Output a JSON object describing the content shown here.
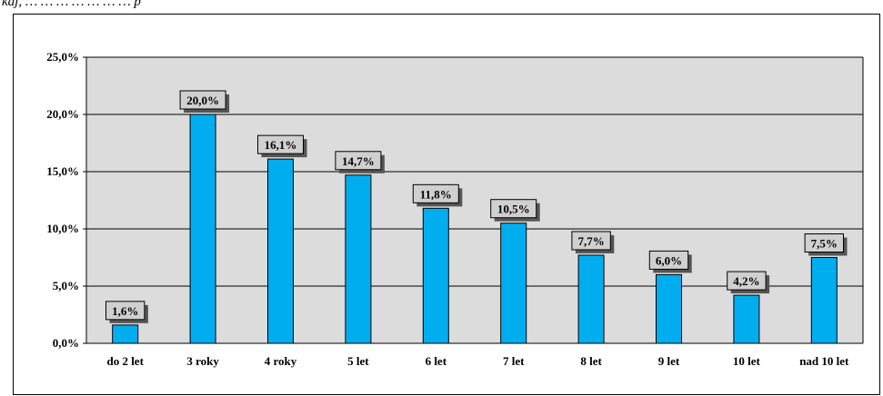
{
  "caption": "kaj, … … … … … … … p",
  "chart_data": {
    "type": "bar",
    "categories": [
      "do 2 let",
      "3 roky",
      "4 roky",
      "5 let",
      "6 let",
      "7 let",
      "8 let",
      "9 let",
      "10 let",
      "nad 10 let"
    ],
    "values": [
      1.6,
      20.0,
      16.1,
      14.7,
      11.8,
      10.5,
      7.7,
      6.0,
      4.2,
      7.5
    ],
    "data_labels": [
      "1,6%",
      "20,0%",
      "16,1%",
      "14,7%",
      "11,8%",
      "10,5%",
      "7,7%",
      "6,0%",
      "4,2%",
      "7,5%"
    ],
    "y_ticks": [
      0,
      5,
      10,
      15,
      20,
      25
    ],
    "y_tick_labels": [
      "0,0%",
      "5,0%",
      "10,0%",
      "15,0%",
      "20,0%",
      "25,0%"
    ],
    "ylim": [
      0,
      25
    ],
    "grid": true,
    "legend": "none",
    "colors": {
      "bar": "#00AEEF",
      "plot_bg": "#DCDCDC",
      "label_box": "#D0D0D0",
      "label_shadow": "#555555"
    }
  }
}
